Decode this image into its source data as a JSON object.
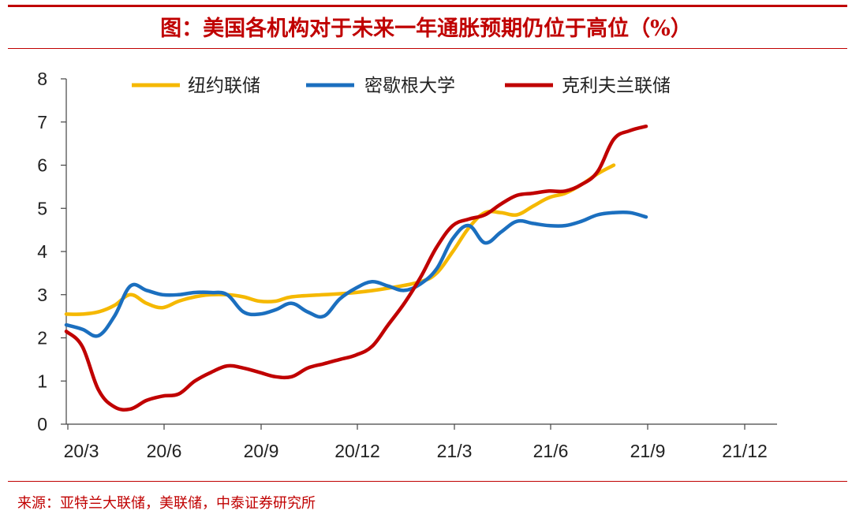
{
  "title": "图：美国各机构对于未来一年通胀预期仍位于高位（%）",
  "source": "来源：亚特兰大联储，美联储，中泰证券研究所",
  "chart_data": {
    "type": "line",
    "title": "图：美国各机构对于未来一年通胀预期仍位于高位（%）",
    "xlabel": "",
    "ylabel": "",
    "ylim": [
      0,
      8
    ],
    "yticks": [
      "0",
      "1",
      "2",
      "3",
      "4",
      "5",
      "6",
      "7",
      "8"
    ],
    "xticks": [
      "20/3",
      "20/6",
      "20/9",
      "20/12",
      "21/3",
      "21/6",
      "21/9",
      "21/12"
    ],
    "grid": false,
    "legend_position": "top",
    "series": [
      {
        "name": "纽约联储",
        "color": "#f5b800",
        "points": [
          [
            0,
            2.55
          ],
          [
            0.5,
            2.55
          ],
          [
            1,
            2.6
          ],
          [
            1.5,
            2.75
          ],
          [
            2,
            3.0
          ],
          [
            2.5,
            2.8
          ],
          [
            3,
            2.7
          ],
          [
            3.5,
            2.85
          ],
          [
            4,
            2.95
          ],
          [
            4.5,
            3.0
          ],
          [
            5,
            3.0
          ],
          [
            5.5,
            2.95
          ],
          [
            6,
            2.85
          ],
          [
            6.5,
            2.85
          ],
          [
            7,
            2.95
          ],
          [
            8,
            3.0
          ],
          [
            9,
            3.05
          ],
          [
            10,
            3.15
          ],
          [
            11,
            3.3
          ],
          [
            11.5,
            3.5
          ],
          [
            12,
            4.0
          ],
          [
            12.5,
            4.55
          ],
          [
            13,
            4.9
          ],
          [
            13.5,
            4.9
          ],
          [
            14,
            4.85
          ],
          [
            14.5,
            5.05
          ],
          [
            15,
            5.25
          ],
          [
            15.5,
            5.35
          ],
          [
            16,
            5.55
          ],
          [
            16.5,
            5.8
          ],
          [
            17,
            6.0
          ]
        ]
      },
      {
        "name": "密歇根大学",
        "color": "#1b6fbf",
        "points": [
          [
            0,
            2.3
          ],
          [
            0.5,
            2.2
          ],
          [
            1,
            2.05
          ],
          [
            1.5,
            2.5
          ],
          [
            2,
            3.2
          ],
          [
            2.5,
            3.1
          ],
          [
            3,
            3.0
          ],
          [
            3.5,
            3.0
          ],
          [
            4,
            3.05
          ],
          [
            4.5,
            3.05
          ],
          [
            5,
            3.0
          ],
          [
            5.5,
            2.6
          ],
          [
            6,
            2.55
          ],
          [
            6.5,
            2.65
          ],
          [
            7,
            2.8
          ],
          [
            7.5,
            2.6
          ],
          [
            8,
            2.5
          ],
          [
            8.5,
            2.9
          ],
          [
            9,
            3.15
          ],
          [
            9.5,
            3.3
          ],
          [
            10,
            3.2
          ],
          [
            10.5,
            3.1
          ],
          [
            11,
            3.25
          ],
          [
            11.5,
            3.6
          ],
          [
            12,
            4.3
          ],
          [
            12.5,
            4.6
          ],
          [
            13,
            4.2
          ],
          [
            13.5,
            4.45
          ],
          [
            14,
            4.7
          ],
          [
            14.5,
            4.65
          ],
          [
            15,
            4.6
          ],
          [
            15.5,
            4.6
          ],
          [
            16,
            4.7
          ],
          [
            16.5,
            4.85
          ],
          [
            17,
            4.9
          ],
          [
            17.5,
            4.9
          ],
          [
            18,
            4.8
          ]
        ]
      },
      {
        "name": "克利夫兰联储",
        "color": "#c00000",
        "points": [
          [
            0,
            2.15
          ],
          [
            0.5,
            1.8
          ],
          [
            1,
            0.8
          ],
          [
            1.5,
            0.4
          ],
          [
            2,
            0.35
          ],
          [
            2.5,
            0.55
          ],
          [
            3,
            0.65
          ],
          [
            3.5,
            0.7
          ],
          [
            4,
            1.0
          ],
          [
            4.5,
            1.2
          ],
          [
            5,
            1.35
          ],
          [
            5.5,
            1.3
          ],
          [
            6,
            1.2
          ],
          [
            6.5,
            1.1
          ],
          [
            7,
            1.1
          ],
          [
            7.5,
            1.3
          ],
          [
            8,
            1.4
          ],
          [
            8.5,
            1.5
          ],
          [
            9,
            1.6
          ],
          [
            9.5,
            1.8
          ],
          [
            10,
            2.3
          ],
          [
            10.5,
            2.8
          ],
          [
            11,
            3.4
          ],
          [
            11.5,
            4.1
          ],
          [
            12,
            4.6
          ],
          [
            12.5,
            4.75
          ],
          [
            13,
            4.85
          ],
          [
            13.5,
            5.1
          ],
          [
            14,
            5.3
          ],
          [
            14.5,
            5.35
          ],
          [
            15,
            5.4
          ],
          [
            15.5,
            5.4
          ],
          [
            16,
            5.55
          ],
          [
            16.5,
            5.85
          ],
          [
            17,
            6.6
          ],
          [
            17.5,
            6.8
          ],
          [
            18,
            6.9
          ]
        ]
      }
    ]
  }
}
